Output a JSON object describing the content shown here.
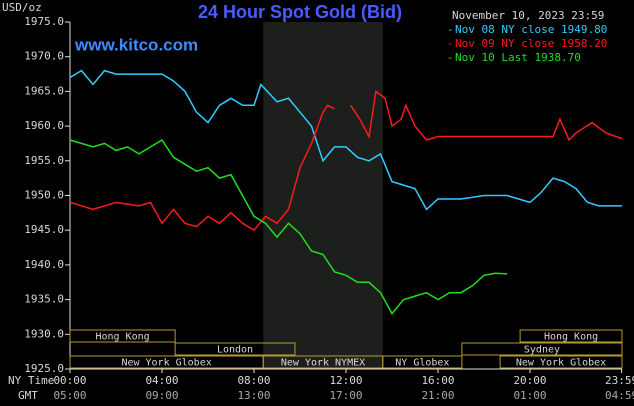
{
  "chart_data": {
    "type": "line",
    "title": "24 Hour Spot Gold (Bid)",
    "watermark": "www.kitco.com",
    "timestamp": "November 10, 2023 23:59",
    "y_label": "USD/oz",
    "row_labels": [
      "NY Time",
      "GMT"
    ],
    "xlim": [
      0,
      24
    ],
    "xticks": [
      {
        "value": 0,
        "label": "00:00"
      },
      {
        "value": 4,
        "label": "04:00"
      },
      {
        "value": 8,
        "label": "08:00"
      },
      {
        "value": 12,
        "label": "12:00"
      },
      {
        "value": 16,
        "label": "16:00"
      },
      {
        "value": 20,
        "label": "20:00"
      },
      {
        "value": 23.983,
        "label": "23:59"
      }
    ],
    "gmt_ticks": [
      {
        "value": 0,
        "label": "05:00"
      },
      {
        "value": 4,
        "label": "09:00"
      },
      {
        "value": 8,
        "label": "13:00"
      },
      {
        "value": 12,
        "label": "17:00"
      },
      {
        "value": 16,
        "label": "21:00"
      },
      {
        "value": 20,
        "label": "01:00"
      },
      {
        "value": 23.983,
        "label": "04:59"
      }
    ],
    "ylim": [
      1925,
      1975
    ],
    "yticks": [
      {
        "value": 1975,
        "label": "1975.0"
      },
      {
        "value": 1970,
        "label": "1970.0"
      },
      {
        "value": 1965,
        "label": "1965.0"
      },
      {
        "value": 1960,
        "label": "1960.0"
      },
      {
        "value": 1955,
        "label": "1955.0"
      },
      {
        "value": 1950,
        "label": "1950.0"
      },
      {
        "value": 1945,
        "label": "1945.0"
      },
      {
        "value": 1940,
        "label": "1940.0"
      },
      {
        "value": 1935,
        "label": "1935.0"
      },
      {
        "value": 1930,
        "label": "1930.0"
      },
      {
        "value": 1925,
        "label": "1925.0"
      }
    ],
    "grid": false,
    "shaded_span": [
      8.4,
      13.6
    ],
    "sessions": [
      {
        "label": "Hong Kong",
        "start": 0,
        "end": 4.57,
        "row": 0
      },
      {
        "label": "London",
        "start": 4.57,
        "end": 9.78,
        "row": 1
      },
      {
        "label": "New York Globex",
        "start": 0,
        "end": 8.4,
        "row": 2
      },
      {
        "label": "New York NYMEX",
        "start": 8.4,
        "end": 13.6,
        "row": 2
      },
      {
        "label": "NY Globex",
        "start": 13.6,
        "end": 17.04,
        "row": 2
      },
      {
        "label": "Sydney",
        "start": 17.04,
        "end": 24,
        "row": 1
      },
      {
        "label": "Hong Kong",
        "start": 19.57,
        "end": 24,
        "row": 0
      },
      {
        "label": "New York Globex",
        "start": 18.7,
        "end": 24,
        "row": 2
      }
    ],
    "series": [
      {
        "name": "Nov 08 NY close 1949.80",
        "color": "#33ccff",
        "x": [
          0,
          0.5,
          1,
          1.5,
          2,
          3,
          4,
          4.5,
          5,
          5.5,
          6,
          6.5,
          7,
          7.5,
          8,
          8.3,
          9,
          9.5,
          10,
          10.5,
          11,
          11.5,
          12,
          12.5,
          13,
          13.5,
          14,
          14.5,
          15,
          15.5,
          16,
          17,
          18,
          19,
          20,
          20.5,
          21,
          21.5,
          22,
          22.5,
          23,
          23.5,
          24
        ],
        "values": [
          1967,
          1968,
          1966,
          1968,
          1967.5,
          1967.5,
          1967.5,
          1966.5,
          1965,
          1962,
          1960.5,
          1963,
          1964,
          1963,
          1963,
          1966,
          1963.5,
          1964,
          1962,
          1960,
          1955,
          1957,
          1957,
          1955.5,
          1955,
          1956,
          1952,
          1951.5,
          1951,
          1948,
          1949.5,
          1949.5,
          1950,
          1950,
          1949,
          1950.5,
          1952.5,
          1952,
          1951,
          1949,
          1948.5,
          1948.5,
          1948.5
        ]
      },
      {
        "name": "Nov 09 NY close 1958.20",
        "color": "#ff1a1a",
        "x": [
          0,
          1,
          2,
          3,
          3.5,
          4,
          4.5,
          5,
          5.5,
          6,
          6.5,
          7,
          7.5,
          8,
          8.5,
          9,
          9.5,
          10,
          10.5,
          11,
          11.2,
          11.5,
          11.8,
          12.2,
          12.6,
          13,
          13.3,
          13.7,
          14,
          14.4,
          14.6,
          15,
          15.5,
          16,
          17,
          18,
          19,
          20,
          21,
          21.3,
          21.7,
          22,
          22.7,
          23.3,
          24
        ],
        "values": [
          1949,
          1948,
          1949,
          1948.5,
          1949,
          1946,
          1948,
          1946,
          1945.5,
          1947,
          1946,
          1947.5,
          1946,
          1945,
          1947,
          1946,
          1948,
          1954,
          1957.5,
          1962,
          1963,
          1962.5,
          null,
          1963,
          1961,
          1958.5,
          1965,
          1964,
          1960,
          1961,
          1963,
          1960,
          1958,
          1958.5,
          1958.5,
          1958.5,
          1958.5,
          1958.5,
          1958.5,
          1961,
          1958,
          1959,
          1960.5,
          1959,
          1958.2
        ]
      },
      {
        "name": "Nov 10 Last 1938.70",
        "color": "#22dd22",
        "x": [
          0,
          1,
          1.5,
          2,
          2.5,
          3,
          3.5,
          4,
          4.5,
          5,
          5.5,
          6,
          6.5,
          7,
          7.5,
          8,
          8.5,
          9,
          9.5,
          10,
          10.5,
          11,
          11.5,
          12,
          12.5,
          13,
          13.5,
          14,
          14.5,
          15,
          15.5,
          16,
          16.5,
          17,
          17.5,
          18,
          18.5,
          19
        ],
        "values": [
          1958,
          1957,
          1957.5,
          1956.5,
          1957,
          1956,
          1957,
          1958,
          1955.5,
          1954.5,
          1953.5,
          1954,
          1952.5,
          1953,
          1950,
          1947,
          1946,
          1944,
          1946,
          1944.5,
          1942,
          1941.5,
          1939,
          1938.5,
          1937.5,
          1937.5,
          1936,
          1933,
          1935,
          1935.5,
          1936,
          1935,
          1936,
          1936,
          1937,
          1938.5,
          1938.8,
          1938.7
        ]
      }
    ]
  }
}
